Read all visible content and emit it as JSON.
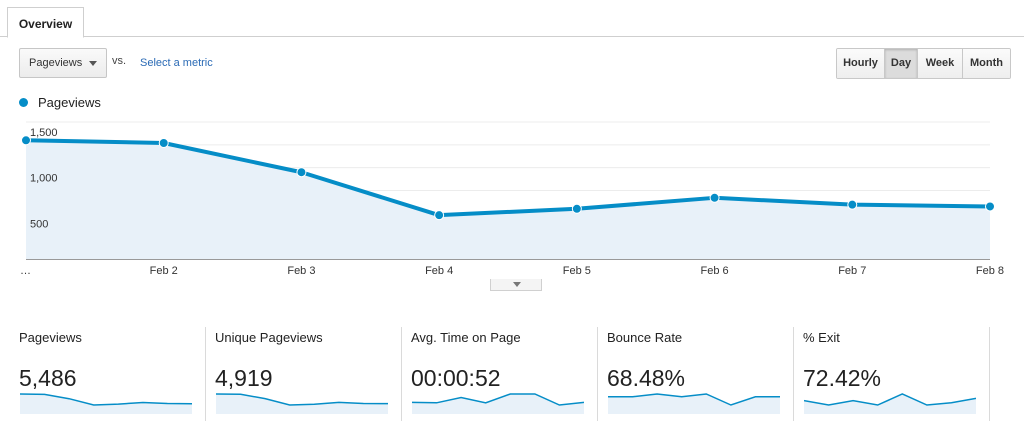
{
  "tabs": [
    {
      "label": "Overview"
    }
  ],
  "controls": {
    "metric_select": "Pageviews",
    "vs_label": "vs.",
    "select_metric_link": "Select a metric",
    "granularity": [
      {
        "label": "Hourly",
        "active": false
      },
      {
        "label": "Day",
        "active": true
      },
      {
        "label": "Week",
        "active": false
      },
      {
        "label": "Month",
        "active": false
      }
    ]
  },
  "legend": {
    "label": "Pageviews",
    "color": "#058dc7"
  },
  "chart_data": {
    "type": "area",
    "categories": [
      "…",
      "Feb 2",
      "Feb 3",
      "Feb 4",
      "Feb 5",
      "Feb 6",
      "Feb 7",
      "Feb 8"
    ],
    "series": [
      {
        "name": "Pageviews",
        "values": [
          1300,
          1270,
          950,
          480,
          550,
          670,
          595,
          575
        ]
      }
    ],
    "y_ticks": [
      "1,500",
      "1,000",
      "500"
    ],
    "y_tick_values": [
      1500,
      1000,
      500
    ],
    "ylim": [
      0,
      1500
    ],
    "grid": true,
    "line_color": "#058dc7",
    "fill_color": "#e8f1f9"
  },
  "scorecards": [
    {
      "label": "Pageviews",
      "value": "5,486",
      "spark": [
        1300,
        1270,
        950,
        480,
        550,
        670,
        595,
        575
      ]
    },
    {
      "label": "Unique Pageviews",
      "value": "4,919",
      "spark": [
        1150,
        1130,
        850,
        430,
        480,
        600,
        530,
        520
      ]
    },
    {
      "label": "Avg. Time on Page",
      "value": "00:00:52",
      "spark": [
        46,
        45,
        57,
        45,
        65,
        65,
        40,
        46
      ]
    },
    {
      "label": "Bounce Rate",
      "value": "68.48%",
      "spark": [
        68,
        68,
        69,
        68,
        69,
        65,
        68,
        68
      ]
    },
    {
      "label": "% Exit",
      "value": "72.42%",
      "spark": [
        72,
        70,
        72,
        70,
        75,
        70,
        71,
        73
      ]
    }
  ]
}
